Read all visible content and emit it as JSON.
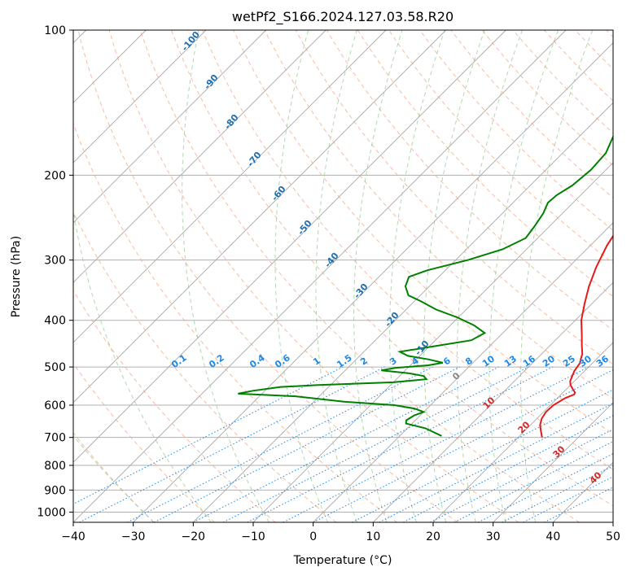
{
  "chart_data": {
    "type": "line",
    "title": "wetPf2_S166.2024.127.03.58.R20",
    "xlabel": "Temperature (°C)",
    "ylabel": "Pressure (hPa)",
    "xlim": [
      -40,
      50
    ],
    "ylim": [
      1050,
      100
    ],
    "y_scale": "log",
    "grid": true,
    "x_ticks": [
      -40,
      -30,
      -20,
      -10,
      0,
      10,
      20,
      30,
      40,
      50
    ],
    "y_ticks": [
      100,
      200,
      300,
      400,
      500,
      600,
      700,
      800,
      900,
      1000
    ],
    "isotherm_skew_deg": 45,
    "series": [
      {
        "role": "temperature",
        "color": "#e41a1c",
        "points": [
          [
            700,
            24.0
          ],
          [
            680,
            22.8
          ],
          [
            660,
            21.6
          ],
          [
            640,
            20.8
          ],
          [
            620,
            20.4
          ],
          [
            600,
            20.5
          ],
          [
            580,
            21.3
          ],
          [
            570,
            22.2
          ],
          [
            565,
            22.0
          ],
          [
            555,
            21.0
          ],
          [
            545,
            20.0
          ],
          [
            535,
            19.3
          ],
          [
            525,
            18.9
          ],
          [
            510,
            18.3
          ],
          [
            500,
            18.1
          ],
          [
            490,
            17.9
          ],
          [
            480,
            17.3
          ],
          [
            470,
            16.8
          ],
          [
            450,
            15.2
          ],
          [
            430,
            13.6
          ],
          [
            400,
            11.0
          ],
          [
            370,
            8.8
          ],
          [
            340,
            6.6
          ],
          [
            310,
            4.6
          ],
          [
            280,
            2.8
          ],
          [
            250,
            1.4
          ],
          [
            230,
            0.7
          ],
          [
            210,
            0.3
          ],
          [
            195,
            0.6
          ],
          [
            180,
            1.6
          ],
          [
            165,
            3.2
          ],
          [
            150,
            5.2
          ],
          [
            130,
            8.6
          ],
          [
            115,
            11.0
          ],
          [
            105,
            11.5
          ],
          [
            100,
            11.8
          ]
        ]
      },
      {
        "role": "dewpoint",
        "color": "#008000",
        "points": [
          [
            695,
            7.0
          ],
          [
            670,
            3.0
          ],
          [
            655,
            -1.0
          ],
          [
            645,
            -1.5
          ],
          [
            630,
            -1.0
          ],
          [
            620,
            0.0
          ],
          [
            610,
            -2.0
          ],
          [
            600,
            -6.0
          ],
          [
            590,
            -15.0
          ],
          [
            575,
            -24.0
          ],
          [
            568,
            -34.0
          ],
          [
            560,
            -32.0
          ],
          [
            550,
            -28.0
          ],
          [
            545,
            -22.0
          ],
          [
            538,
            -10.0
          ],
          [
            530,
            -5.0
          ],
          [
            522,
            -6.0
          ],
          [
            515,
            -9.0
          ],
          [
            508,
            -14.0
          ],
          [
            502,
            -12.0
          ],
          [
            496,
            -7.0
          ],
          [
            490,
            -5.0
          ],
          [
            482,
            -8.0
          ],
          [
            474,
            -12.0
          ],
          [
            465,
            -14.0
          ],
          [
            455,
            -10.0
          ],
          [
            440,
            -4.0
          ],
          [
            425,
            -3.0
          ],
          [
            410,
            -6.0
          ],
          [
            395,
            -10.0
          ],
          [
            380,
            -15.0
          ],
          [
            365,
            -19.0
          ],
          [
            355,
            -22.0
          ],
          [
            340,
            -24.0
          ],
          [
            325,
            -25.0
          ],
          [
            315,
            -23.0
          ],
          [
            300,
            -18.0
          ],
          [
            285,
            -14.0
          ],
          [
            270,
            -12.0
          ],
          [
            255,
            -12.5
          ],
          [
            240,
            -13.2
          ],
          [
            228,
            -14.2
          ],
          [
            220,
            -14.0
          ],
          [
            210,
            -13.0
          ],
          [
            195,
            -12.5
          ],
          [
            180,
            -12.8
          ],
          [
            165,
            -14.5
          ],
          [
            150,
            -14.8
          ],
          [
            140,
            -15.0
          ],
          [
            130,
            -15.5
          ],
          [
            120,
            -16.0
          ],
          [
            110,
            -15.8
          ],
          [
            105,
            -14.0
          ],
          [
            100,
            -12.0
          ]
        ]
      }
    ],
    "mixing_ratio_labels": [
      "0.1",
      "0.2",
      "0.4",
      "0.6",
      "1",
      "1.5",
      "2",
      "3",
      "4",
      "6",
      "8",
      "10",
      "13",
      "16",
      "20",
      "25",
      "30",
      "36"
    ],
    "dry_adiabat_labels": [
      "-100",
      "-90",
      "-80",
      "-70",
      "-60",
      "-50",
      "-40",
      "-30",
      "-20",
      "-10"
    ],
    "moist_adiabat_labels": [
      "0",
      "10",
      "20",
      "30",
      "40"
    ]
  },
  "colors": {
    "temperature": "#e41a1c",
    "dewpoint": "#008000",
    "dry_adiabat": "#f4a582",
    "moist_adiabat": "#8fc98f",
    "mixing_ratio": "#1e88e5",
    "isotherm": "#888888"
  }
}
